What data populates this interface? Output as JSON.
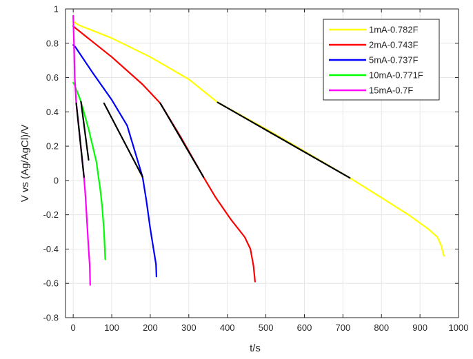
{
  "chart_data": {
    "type": "line",
    "title": "",
    "xlabel": "t/s",
    "ylabel": "V vs (Ag/AgCl)/V",
    "xlim": [
      -20,
      1000
    ],
    "ylim": [
      -0.8,
      1
    ],
    "xticks": [
      0,
      100,
      200,
      300,
      400,
      500,
      600,
      700,
      800,
      900,
      1000
    ],
    "yticks": [
      -0.8,
      -0.6,
      -0.4,
      -0.2,
      0,
      0.2,
      0.4,
      0.6,
      0.8,
      1
    ],
    "grid": true,
    "legend_position": "top-right",
    "series": [
      {
        "name": "1mA-0.782F",
        "color": "#ffff00",
        "points": [
          [
            0,
            0.93
          ],
          [
            5,
            0.92
          ],
          [
            15,
            0.905
          ],
          [
            100,
            0.83
          ],
          [
            200,
            0.72
          ],
          [
            300,
            0.59
          ],
          [
            375,
            0.455
          ],
          [
            500,
            0.3
          ],
          [
            600,
            0.17
          ],
          [
            718,
            0.015
          ],
          [
            800,
            -0.1
          ],
          [
            870,
            -0.2
          ],
          [
            920,
            -0.28
          ],
          [
            945,
            -0.33
          ],
          [
            955,
            -0.38
          ],
          [
            962,
            -0.44
          ]
        ]
      },
      {
        "name": "2mA-0.743F",
        "color": "#ff0000",
        "points": [
          [
            0,
            0.9
          ],
          [
            5,
            0.89
          ],
          [
            100,
            0.72
          ],
          [
            180,
            0.56
          ],
          [
            226,
            0.45
          ],
          [
            280,
            0.25
          ],
          [
            338,
            0.02
          ],
          [
            370,
            -0.1
          ],
          [
            410,
            -0.23
          ],
          [
            445,
            -0.33
          ],
          [
            460,
            -0.4
          ],
          [
            468,
            -0.5
          ],
          [
            472,
            -0.59
          ]
        ]
      },
      {
        "name": "5mA-0.737F",
        "color": "#0000ff",
        "points": [
          [
            0,
            0.79
          ],
          [
            5,
            0.78
          ],
          [
            50,
            0.63
          ],
          [
            100,
            0.47
          ],
          [
            140,
            0.32
          ],
          [
            180,
            0.02
          ],
          [
            190,
            -0.12
          ],
          [
            200,
            -0.28
          ],
          [
            210,
            -0.42
          ],
          [
            215,
            -0.49
          ],
          [
            216,
            -0.56
          ]
        ]
      },
      {
        "name": "10mA-0.771F",
        "color": "#00ff00",
        "points": [
          [
            0,
            0.57
          ],
          [
            3,
            0.56
          ],
          [
            20,
            0.46
          ],
          [
            40,
            0.3
          ],
          [
            60,
            0.11
          ],
          [
            70,
            -0.05
          ],
          [
            75,
            -0.15
          ],
          [
            80,
            -0.3
          ],
          [
            83,
            -0.46
          ]
        ]
      },
      {
        "name": "15mA-0.7F",
        "color": "#ff00ff",
        "points": [
          [
            0,
            0.96
          ],
          [
            2,
            0.8
          ],
          [
            4,
            0.6
          ],
          [
            8,
            0.45
          ],
          [
            15,
            0.3
          ],
          [
            22,
            0.15
          ],
          [
            28,
            0.02
          ],
          [
            32,
            -0.1
          ],
          [
            36,
            -0.25
          ],
          [
            40,
            -0.4
          ],
          [
            43,
            -0.5
          ],
          [
            44,
            -0.61
          ]
        ]
      }
    ],
    "fit_segments": [
      {
        "color": "#000000",
        "points": [
          [
            375,
            0.455
          ],
          [
            718,
            0.015
          ]
        ]
      },
      {
        "color": "#000000",
        "points": [
          [
            226,
            0.45
          ],
          [
            338,
            0.02
          ]
        ]
      },
      {
        "color": "#000000",
        "points": [
          [
            80,
            0.45
          ],
          [
            180,
            0.02
          ]
        ]
      },
      {
        "color": "#000000",
        "points": [
          [
            20,
            0.46
          ],
          [
            40,
            0.12
          ]
        ]
      },
      {
        "color": "#000000",
        "points": [
          [
            8,
            0.45
          ],
          [
            28,
            0.02
          ]
        ]
      }
    ]
  }
}
